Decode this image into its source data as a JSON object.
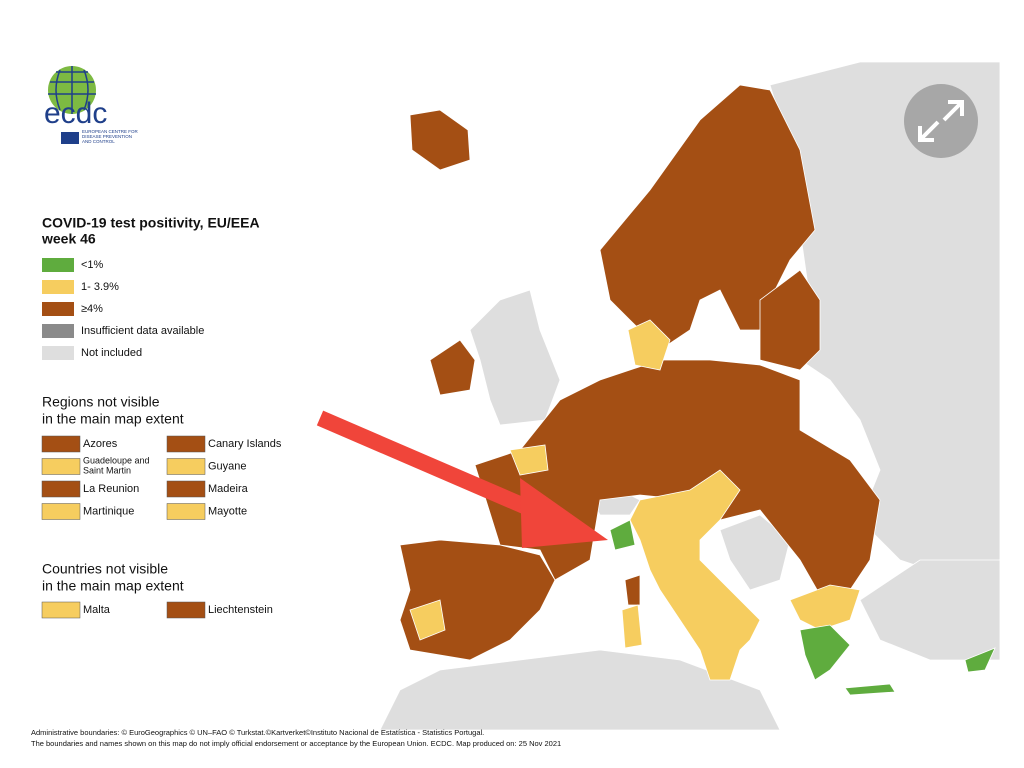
{
  "logo": {
    "name": "ecdc",
    "subtitle": "EUROPEAN CENTRE FOR DISEASE PREVENTION AND CONTROL"
  },
  "title": [
    "COVID-19 test positivity, EU/EEA",
    "week 46"
  ],
  "legend": [
    {
      "label": "<1%",
      "color": "#5fac3e"
    },
    {
      "label": "1- 3.9%",
      "color": "#f6cd5f"
    },
    {
      "label": "≥4%",
      "color": "#a44f14"
    },
    {
      "label": "Insufficient data available",
      "color": "#8a8a8a"
    },
    {
      "label": "Not included",
      "color": "#dedede"
    }
  ],
  "regions": {
    "heading": [
      "Regions not visible",
      "in the main map extent"
    ],
    "items": [
      {
        "label": "Azores",
        "color": "#a44f14"
      },
      {
        "label": "Canary Islands",
        "color": "#a44f14"
      },
      {
        "label": "Guadeloupe and Saint Martin",
        "color": "#f6cd5f"
      },
      {
        "label": "Guyane",
        "color": "#f6cd5f"
      },
      {
        "label": "La Reunion",
        "color": "#a44f14"
      },
      {
        "label": "Madeira",
        "color": "#a44f14"
      },
      {
        "label": "Martinique",
        "color": "#f6cd5f"
      },
      {
        "label": "Mayotte",
        "color": "#f6cd5f"
      }
    ]
  },
  "countries": {
    "heading": [
      "Countries not visible",
      "in the main map extent"
    ],
    "items": [
      {
        "label": "Malta",
        "color": "#f6cd5f"
      },
      {
        "label": "Liechtenstein",
        "color": "#a44f14"
      }
    ]
  },
  "footer": [
    "Administrative boundaries: © EuroGeographics © UN–FAO © Turkstat.©Kartverket©Instituto Nacional de Estatística - Statistics Portugal.",
    "The boundaries and names shown on this map do not imply official endorsement or acceptance by the European Union. ECDC. Map produced on: 25 Nov 2021"
  ]
}
